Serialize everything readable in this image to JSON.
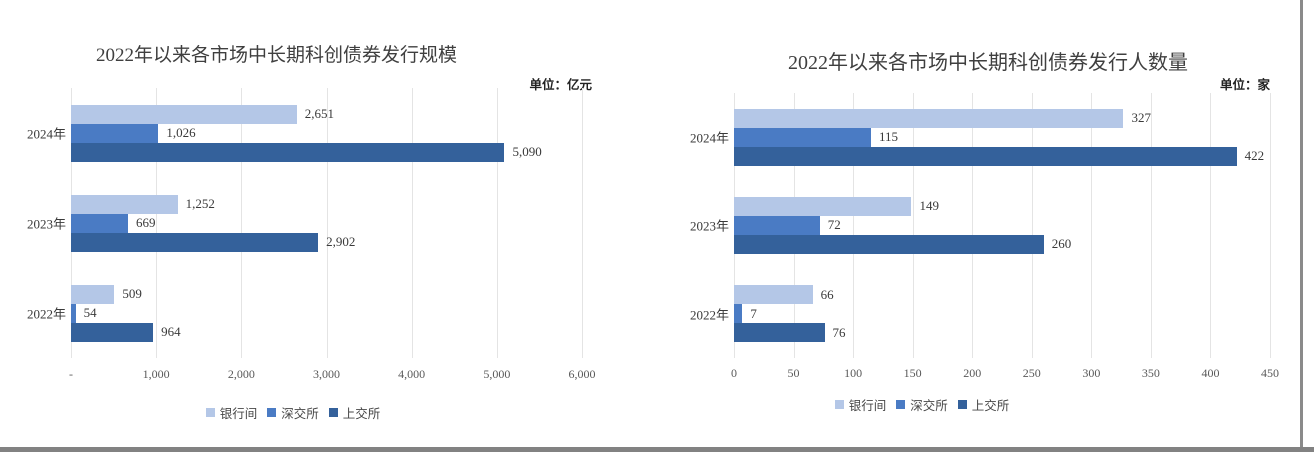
{
  "window": {
    "bottom_bar_color": "#828282",
    "right_border_color": "#8a8a8a",
    "background_color": "#ffffff"
  },
  "chart_data": [
    {
      "type": "bar",
      "orientation": "horizontal-grouped",
      "title": "2022年以来各市场中长期科创债券发行规模",
      "unit_label": "单位：亿元",
      "categories": [
        "2024年",
        "2023年",
        "2022年"
      ],
      "series": [
        {
          "name": "银行间",
          "color": "#b4c7e7",
          "values": [
            2651,
            1252,
            509
          ],
          "labels": [
            "2,651",
            "1,252",
            "509"
          ]
        },
        {
          "name": "深交所",
          "color": "#4a7bc4",
          "values": [
            1026,
            669,
            54
          ],
          "labels": [
            "1,026",
            "669",
            "54"
          ]
        },
        {
          "name": "上交所",
          "color": "#34619b",
          "values": [
            5090,
            2902,
            964
          ],
          "labels": [
            "5,090",
            "2,902",
            "964"
          ]
        }
      ],
      "xlim": [
        0,
        6000
      ],
      "tick_labels": [
        "-",
        "1,000",
        "2,000",
        "3,000",
        "4,000",
        "5,000",
        "6,000"
      ],
      "grid": true,
      "gridline_color": "#e4e4e4",
      "legend_position": "bottom"
    },
    {
      "type": "bar",
      "orientation": "horizontal-grouped",
      "title": "2022年以来各市场中长期科创债券发行人数量",
      "unit_label": "单位：家",
      "categories": [
        "2024年",
        "2023年",
        "2022年"
      ],
      "series": [
        {
          "name": "银行间",
          "color": "#b4c7e7",
          "values": [
            327,
            149,
            66
          ],
          "labels": [
            "327",
            "149",
            "66"
          ]
        },
        {
          "name": "深交所",
          "color": "#4a7bc4",
          "values": [
            115,
            72,
            7
          ],
          "labels": [
            "115",
            "72",
            "7"
          ]
        },
        {
          "name": "上交所",
          "color": "#34619b",
          "values": [
            422,
            260,
            76
          ],
          "labels": [
            "422",
            "260",
            "76"
          ]
        }
      ],
      "xlim": [
        0,
        450
      ],
      "tick_labels": [
        "0",
        "50",
        "100",
        "150",
        "200",
        "250",
        "300",
        "350",
        "400",
        "450"
      ],
      "grid": true,
      "gridline_color": "#e4e4e4",
      "legend_position": "bottom"
    }
  ]
}
